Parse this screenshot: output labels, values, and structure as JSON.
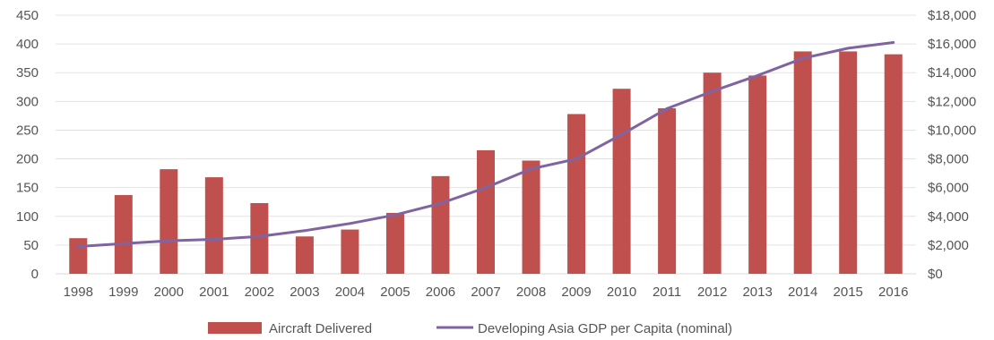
{
  "chart_data": {
    "type": "bar",
    "categories": [
      "1998",
      "1999",
      "2000",
      "2001",
      "2002",
      "2003",
      "2004",
      "2005",
      "2006",
      "2007",
      "2008",
      "2009",
      "2010",
      "2011",
      "2012",
      "2013",
      "2014",
      "2015",
      "2016"
    ],
    "series": [
      {
        "name": "Aircraft Delivered",
        "type": "bar",
        "axis": "left",
        "color": "#c0504d",
        "values": [
          62,
          137,
          182,
          168,
          123,
          65,
          77,
          106,
          170,
          215,
          197,
          278,
          322,
          288,
          350,
          345,
          387,
          387,
          382
        ]
      },
      {
        "name": "Developing Asia GDP per Capita (nominal)",
        "type": "line",
        "axis": "right",
        "color": "#8064a2",
        "values": [
          1900,
          2100,
          2300,
          2400,
          2600,
          3000,
          3500,
          4100,
          4900,
          6000,
          7300,
          8000,
          9700,
          11500,
          12700,
          13800,
          15000,
          15700,
          16100
        ]
      }
    ],
    "y_left": {
      "ylim": [
        0,
        450
      ],
      "ticks": [
        "0",
        "50",
        "100",
        "150",
        "200",
        "250",
        "300",
        "350",
        "400",
        "450"
      ]
    },
    "y_right": {
      "ylim": [
        0,
        18000
      ],
      "ticks": [
        "$0",
        "$2,000",
        "$4,000",
        "$6,000",
        "$8,000",
        "$10,000",
        "$12,000",
        "$14,000",
        "$16,000",
        "$18,000"
      ]
    },
    "grid": true,
    "legend": "bottom"
  }
}
